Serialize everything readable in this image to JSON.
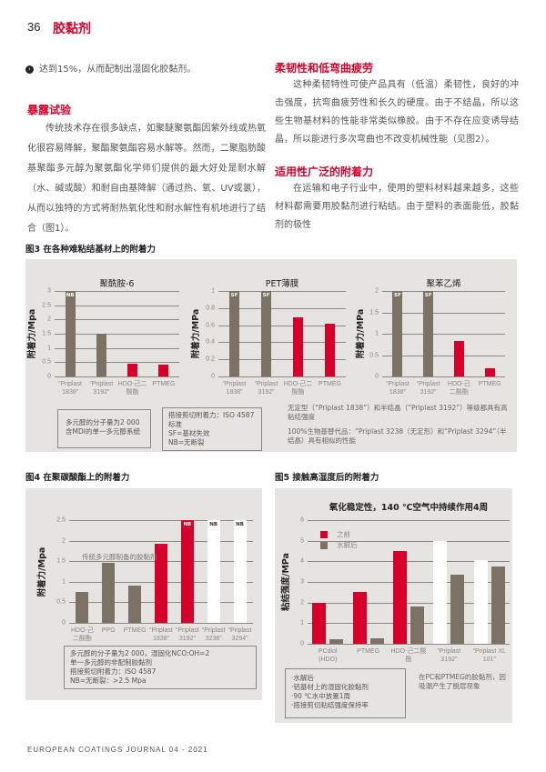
{
  "header": {
    "page_number": "36",
    "section": "胶黏剂"
  },
  "left_column": {
    "bullet_text": "达到15%，从而配制出湿固化胶黏剂。",
    "heading": "暴露试验",
    "paragraph": "传统技术存在很多缺点，如聚醚聚氨酯因紫外线或热氧化很容易降解，聚酯聚氨酯容易水解等。然而，二聚脂肪酸基聚酯多元醇为聚氨酯化学师们提供的最大好处是耐水解（水、碱或酸）和耐自由基降解（通过热、氧、UV或氯），从而以独特的方式将耐热氧化性和耐水解性有机地进行了结合（图1）。"
  },
  "right_column": {
    "heading1": "柔韧性和低弯曲疲劳",
    "paragraph1": "这种柔韧特性可使产品具有（低温）柔韧性，良好的冲击强度，抗弯曲疲劳性和长久的硬度。由于不结晶，所以这些生物基材料的性能非常类似橡胶。由于不存在应变诱导结晶，所以能进行多次弯曲也不改变机械性能（见图2）。",
    "heading2": "适用性广泛的附着力",
    "paragraph2": "在运输和电子行业中，使用的塑料材料越来越多，这些材料都需要用胶黏剂进行粘结。由于塑料的表面能低，胶黏剂的极性"
  },
  "colors": {
    "accent": "#d6002a",
    "gray_bar": "#7b7265",
    "white_bar": "#ffffff",
    "panel": "#e6e4e1"
  },
  "figure3": {
    "caption": "图3 在各种难粘结基材上的附着力",
    "note1": "多元醇的分子量为2 000\n含MDI的单一多元醇系统",
    "note2": "搭接剪切附着力：ISO 4587\n标准\nSF=基材失效\nNB=无断裂",
    "note3_a": "无定型（“Priplast 1838”）和半结晶（“Priplast 3192”）等级都具有高粘结强度",
    "note3_b": "100%生物基替代品：“Priplast 3238（无定形）和“Priplast 3294”（半结晶）具有相似的性能"
  },
  "figure4": {
    "caption": "图4 在聚碳酸酯上的附着力",
    "note": "多元醇的分子量为2 000，湿固化NCO:OH=2\n单一多元醇的非配制胶黏剂\n搭接剪切附着力：ISO 4587\nNB=无断裂：>2.5 Mpa"
  },
  "figure5": {
    "caption": "图5 接触高湿度后的附着力",
    "note": "·水解后\n·铝基材上的湿固化胶黏剂\n·90 ℃水中放置1周\n·搭接剪切粘结强度保持率",
    "side_note": "在PC和PTMEG的胶黏剂，因吸潮产生了脱层现象"
  },
  "chart_data": [
    {
      "type": "bar",
      "title": "聚酰胺-6",
      "ylabel": "附着力/Mpa",
      "ylim": [
        0,
        3
      ],
      "yticks": [
        "0",
        "0.5",
        "1",
        "1.5",
        "2",
        "2.5",
        "3"
      ],
      "tick_values": [
        0,
        0.5,
        1,
        1.5,
        2,
        2.5,
        3
      ],
      "grid": true,
      "categories": [
        "“Priplast 1838”",
        "“Priplast 3192”",
        "HDO-己二酸酯",
        "PTMEG"
      ],
      "values": [
        3,
        1.5,
        0.45,
        0.4
      ],
      "bar_colors": [
        "#7b7265",
        "#7b7265",
        "#d6002a",
        "#d6002a"
      ],
      "bar_labels": [
        "NB",
        "",
        "",
        ""
      ]
    },
    {
      "type": "bar",
      "title": "PET薄膜",
      "ylabel": "附着力/MPa",
      "ylim": [
        0,
        1
      ],
      "yticks": [
        "0",
        "0.2",
        "0.4",
        "0.6",
        "0.8",
        "1"
      ],
      "tick_values": [
        0,
        0.2,
        0.4,
        0.6,
        0.8,
        1
      ],
      "grid": true,
      "categories": [
        "“Priplast 1838”",
        "“Priplast 3192”",
        "HDO-己二酸酯",
        "PTMEG"
      ],
      "values": [
        1,
        1,
        0.69,
        0.62
      ],
      "bar_colors": [
        "#7b7265",
        "#7b7265",
        "#d6002a",
        "#d6002a"
      ],
      "bar_labels": [
        "SF",
        "SF",
        "",
        ""
      ]
    },
    {
      "type": "bar",
      "title": "聚苯乙烯",
      "ylabel": "附着力/MPa",
      "ylim": [
        0,
        2
      ],
      "yticks": [
        "0",
        "0.5",
        "1",
        "1.5",
        "2"
      ],
      "tick_values": [
        0,
        0.5,
        1,
        1.5,
        2
      ],
      "grid": true,
      "categories": [
        "“Priplast 1838”",
        "“Priplast 3192”",
        "HDO-己二酸酯",
        "PTMEG"
      ],
      "values": [
        2,
        2,
        0.83,
        0.2
      ],
      "bar_colors": [
        "#7b7265",
        "#7b7265",
        "#d6002a",
        "#d6002a"
      ],
      "bar_labels": [
        "SF",
        "SF",
        "",
        ""
      ]
    },
    {
      "type": "bar",
      "title": "",
      "ylabel": "附着力/Mpa",
      "ylim": [
        0,
        2.5
      ],
      "yticks": [
        "0",
        "0.5",
        "1",
        "1.5",
        "2",
        "2.5"
      ],
      "tick_values": [
        0,
        0.5,
        1,
        1.5,
        2,
        2.5
      ],
      "grid": true,
      "annotation": "传统多元醇制备的胶黏剂",
      "categories": [
        "HDO-己二酸酯",
        "PPG",
        "PTMEG",
        "“Priplast 1838”",
        "“Priplast 3192”",
        "“Priplast 3238”",
        "“Priplast 3294”"
      ],
      "values": [
        0.75,
        1.47,
        0.9,
        1.92,
        2.5,
        2.5,
        2.5
      ],
      "bar_colors": [
        "#7b7265",
        "#7b7265",
        "#7b7265",
        "#d6002a",
        "#d6002a",
        "#ffffff",
        "#ffffff"
      ],
      "bar_labels": [
        "",
        "",
        "",
        "",
        "NB",
        "NB",
        "NB"
      ]
    },
    {
      "type": "bar",
      "title": "氧化稳定性，140 ℃空气中持续作用4周",
      "ylabel": "粘结强度/MPa",
      "ylim": [
        0,
        6
      ],
      "yticks": [
        "0",
        "1",
        "2",
        "3",
        "4",
        "5",
        "6"
      ],
      "tick_values": [
        0,
        1,
        2,
        3,
        4,
        5,
        6
      ],
      "grid": true,
      "legend": "top-left",
      "categories": [
        "PCdiol (HDO)",
        "PTMEG",
        "HDO-己二酸酯",
        "“Priplast 3192”",
        "“Priplast XL 101”"
      ],
      "series": [
        {
          "name": "之前",
          "values": [
            2,
            2.5,
            4.5,
            5,
            4.05
          ],
          "bar_colors": [
            "#d6002a",
            "#d6002a",
            "#d6002a",
            "#ffffff",
            "#ffffff"
          ]
        },
        {
          "name": "水解后",
          "values": [
            0.2,
            0.25,
            1.8,
            3.35,
            3.75
          ],
          "bar_colors": [
            "#7b7265",
            "#7b7265",
            "#7b7265",
            "#7b7265",
            "#7b7265"
          ]
        }
      ]
    }
  ],
  "footer": {
    "journal": "EUROPEAN COATINGS JOURNAL 04 - 2021"
  }
}
